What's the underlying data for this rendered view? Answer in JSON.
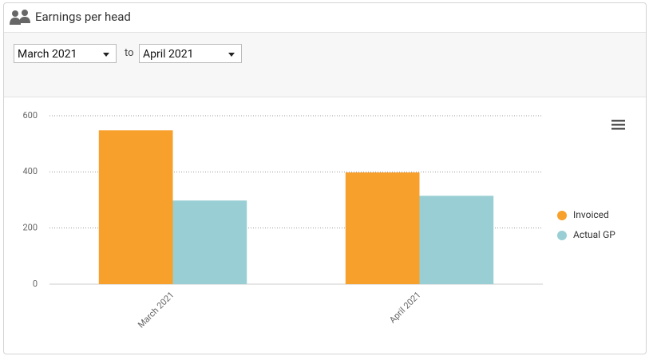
{
  "header": {
    "title": "Earnings per head"
  },
  "filter": {
    "from": "March 2021",
    "separator": "to",
    "to": "April 2021"
  },
  "chart_data": {
    "type": "bar",
    "categories": [
      "March 2021",
      "April 2021"
    ],
    "series": [
      {
        "name": "Invoiced",
        "color": "#f7a02c",
        "values": [
          548,
          398
        ]
      },
      {
        "name": "Actual GP",
        "color": "#99cfd4",
        "values": [
          298,
          315
        ]
      }
    ],
    "ylim": [
      0,
      600
    ],
    "yticks": [
      0,
      200,
      400,
      600
    ],
    "grid": true,
    "legend": "right"
  }
}
